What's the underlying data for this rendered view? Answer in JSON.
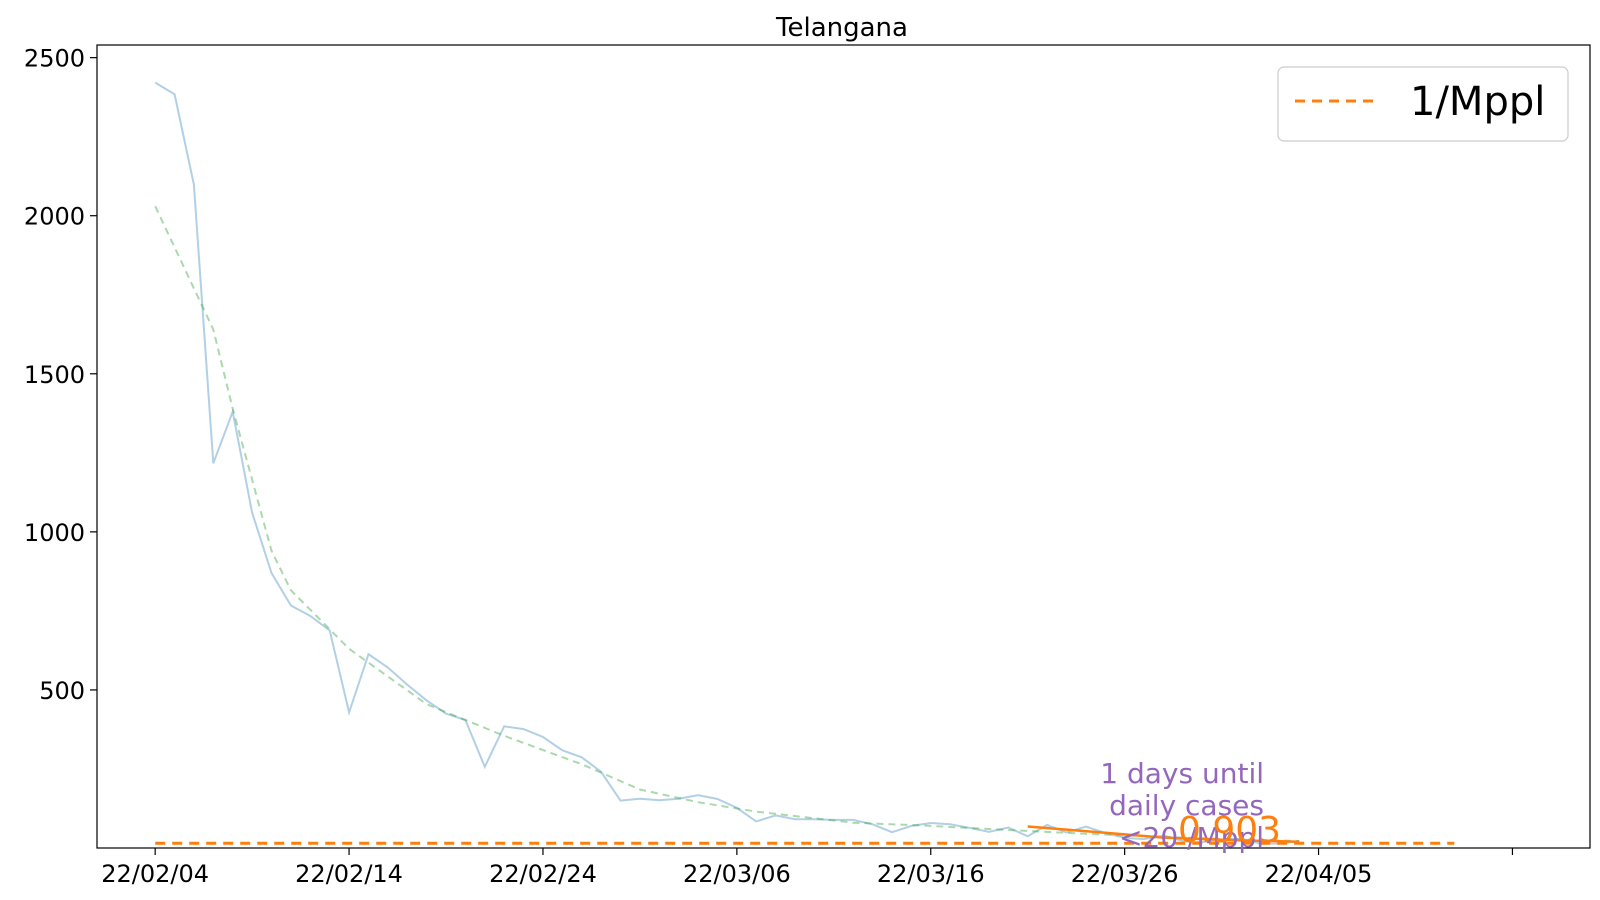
{
  "chart_data": {
    "type": "line",
    "title": "Telangana",
    "xlabel": "",
    "ylabel": "",
    "x_ticks": [
      "22/02/04",
      "22/02/14",
      "22/02/24",
      "22/03/06",
      "22/03/16",
      "22/03/26",
      "22/04/05",
      ""
    ],
    "y_ticks": [
      "500",
      "1000",
      "1500",
      "2000",
      "2500"
    ],
    "xlim": [
      "2022-02-01",
      "2022-04-19"
    ],
    "ylim": [
      0,
      2540
    ],
    "grid": false,
    "legend": {
      "placement": "top-right",
      "entries": [
        {
          "label": "1/Mppl",
          "color": "#ff7f0e",
          "style": "dashed"
        }
      ]
    },
    "colors": {
      "daily": "#1f77b4",
      "smoothed": "#2ca02c",
      "threshold": "#ff7f0e",
      "forecast": "#ff7f0e",
      "annotation": "#9467bd"
    },
    "series": [
      {
        "key": "daily",
        "x": [
          "2022-02-04",
          "2022-02-05",
          "2022-02-06",
          "2022-02-07",
          "2022-02-08",
          "2022-02-09",
          "2022-02-10",
          "2022-02-11",
          "2022-02-12",
          "2022-02-13",
          "2022-02-14",
          "2022-02-15",
          "2022-02-16",
          "2022-02-17",
          "2022-02-18",
          "2022-02-19",
          "2022-02-20",
          "2022-02-21",
          "2022-02-22",
          "2022-02-23",
          "2022-02-24",
          "2022-02-25",
          "2022-02-26",
          "2022-02-27",
          "2022-02-28",
          "2022-03-01",
          "2022-03-02",
          "2022-03-03",
          "2022-03-04",
          "2022-03-05",
          "2022-03-06",
          "2022-03-07",
          "2022-03-08",
          "2022-03-09",
          "2022-03-10",
          "2022-03-11",
          "2022-03-12",
          "2022-03-13",
          "2022-03-14",
          "2022-03-15",
          "2022-03-16",
          "2022-03-17",
          "2022-03-18",
          "2022-03-19",
          "2022-03-20",
          "2022-03-21",
          "2022-03-22",
          "2022-03-23",
          "2022-03-24",
          "2022-03-25",
          "2022-03-26",
          "2022-03-27",
          "2022-03-28",
          "2022-03-29",
          "2022-03-30",
          "2022-03-31",
          "2022-04-01",
          "2022-04-02",
          "2022-04-03",
          "2022-04-04"
        ],
        "values": [
          2421,
          2384,
          2098,
          1217,
          1380,
          1061,
          870,
          767,
          734,
          688,
          429,
          613,
          571,
          517,
          467,
          425,
          405,
          257,
          385,
          376,
          351,
          309,
          287,
          241,
          150,
          156,
          151,
          156,
          167,
          155,
          127,
          84,
          103,
          91,
          91,
          89,
          89,
          75,
          50,
          70,
          79,
          75,
          64,
          51,
          65,
          37,
          73,
          49,
          68,
          47,
          32,
          28,
          40,
          22,
          19,
          26,
          30,
          14,
          14,
          22
        ]
      },
      {
        "key": "smoothed",
        "x": [
          "2022-02-04",
          "2022-02-07",
          "2022-02-08",
          "2022-02-10",
          "2022-02-11",
          "2022-02-14",
          "2022-02-18",
          "2022-02-22",
          "2022-02-26",
          "2022-03-01",
          "2022-03-04",
          "2022-03-07",
          "2022-03-12",
          "2022-03-16",
          "2022-03-20",
          "2022-03-24",
          "2022-03-28",
          "2022-04-01",
          "2022-04-04"
        ],
        "values": [
          2030,
          1640,
          1390,
          940,
          815,
          630,
          455,
          355,
          265,
          185,
          145,
          115,
          80,
          70,
          57,
          45,
          35,
          27,
          22
        ]
      },
      {
        "key": "forecast",
        "x": [
          "2022-03-21",
          "2022-03-25",
          "2022-03-28",
          "2022-04-01",
          "2022-04-04"
        ],
        "values": [
          68,
          48,
          33,
          24,
          20
        ]
      },
      {
        "key": "threshold",
        "x": [
          "2022-02-04",
          "2022-04-12"
        ],
        "values": [
          15,
          15
        ]
      }
    ],
    "annotations": [
      {
        "key": "days",
        "lines": [
          "1 days until",
          "daily cases",
          "<20 /Mppl"
        ],
        "color": "#9467bd"
      },
      {
        "key": "rate",
        "text": "0.903",
        "color": "#ff7f0e"
      }
    ]
  }
}
